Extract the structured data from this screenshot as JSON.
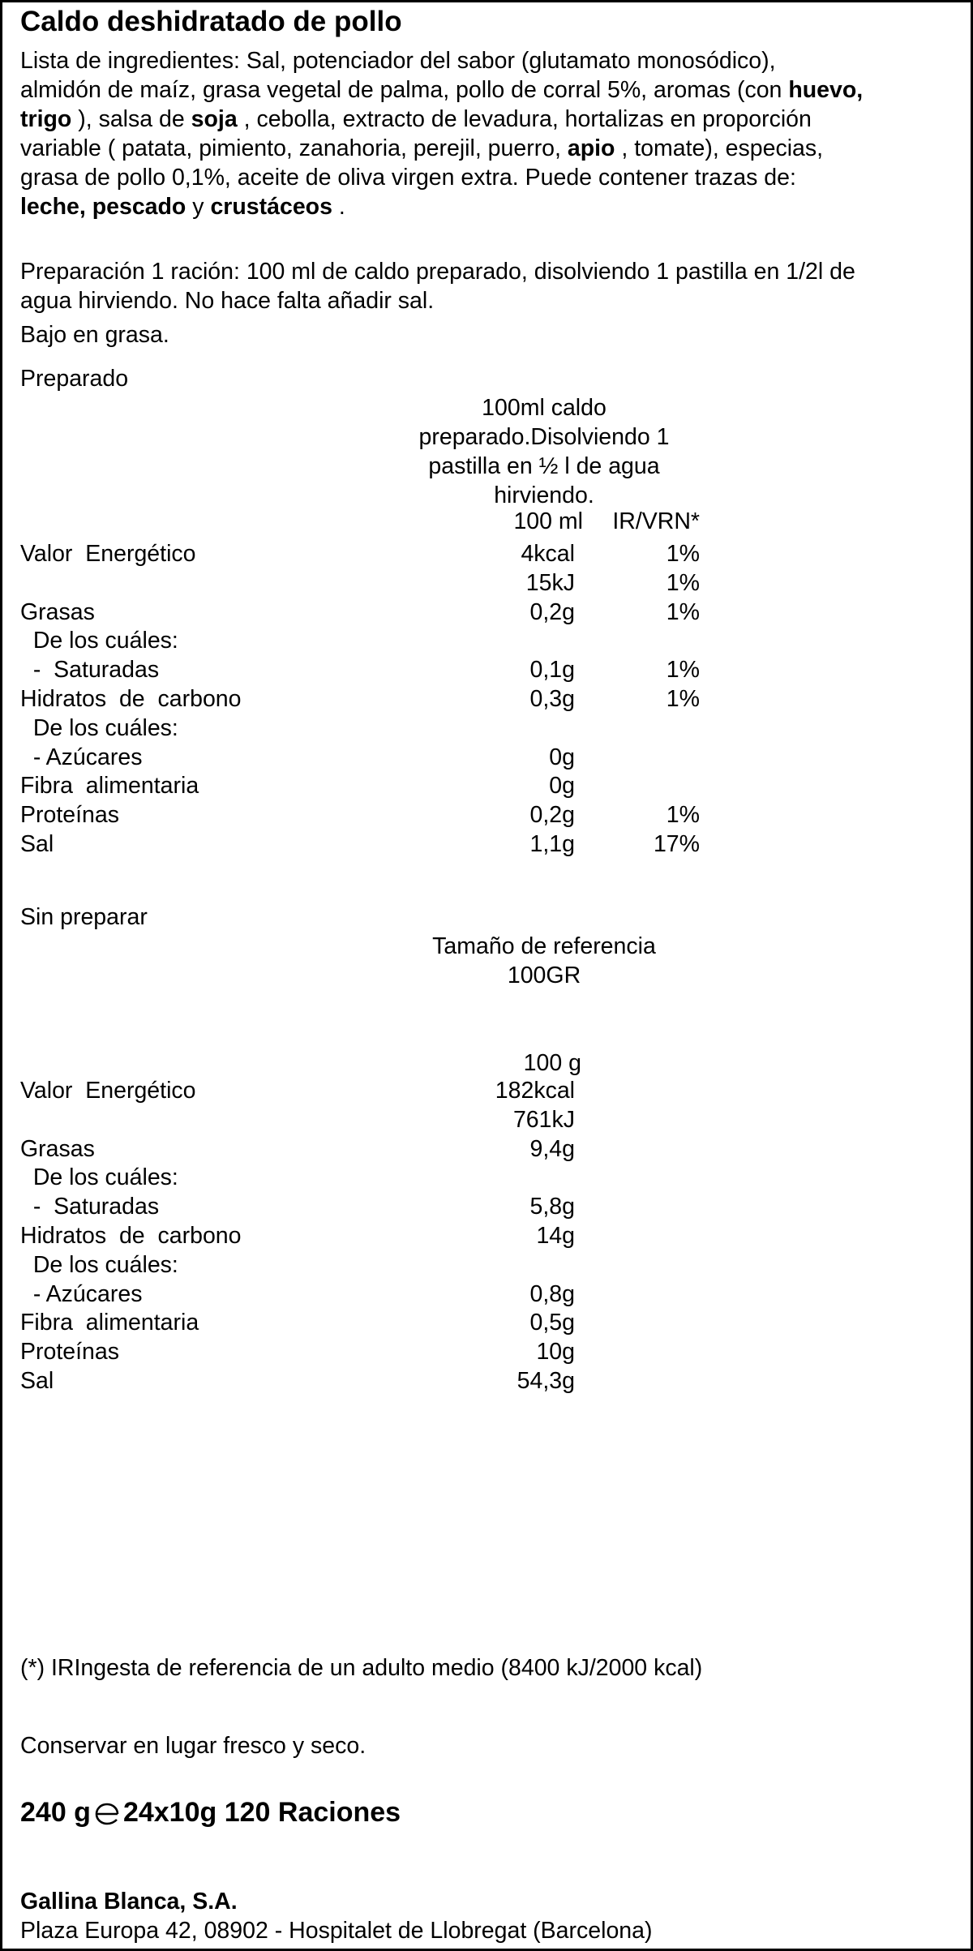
{
  "title": "Caldo deshidratado de pollo",
  "ingredients": [
    {
      "text": "Lista de ingredientes: Sal, potenciador del sabor (glutamato monosódico),"
    },
    {
      "text": "almidón de maíz, grasa vegetal de palma, pollo de corral 5%, aromas (con ",
      "bold1": "huevo,"
    },
    {
      "bold0": "trigo",
      "text": " ), salsa de ",
      "bold1": "soja",
      "text2": " , cebolla, extracto de levadura, hortalizas en proporción"
    },
    {
      "text": "variable ( patata, pimiento, zanahoria, perejil, puerro, ",
      "bold1": "apio",
      "text2": " , tomate), especias,"
    },
    {
      "text": "grasa de pollo 0,1%, aceite de oliva virgen extra. Puede contener trazas de:"
    },
    {
      "bold0": "leche, pescado",
      "text": " y ",
      "bold1": "crustáceos",
      "text2": " ."
    }
  ],
  "preparation": {
    "line1": "Preparación 1 ración: 100 ml de caldo preparado, disolviendo 1 pastilla en 1/2l de",
    "line2": "agua hirviendo. No hace falta añadir sal.",
    "low_fat": "Bajo en grasa."
  },
  "prepared": {
    "heading": "Preparado",
    "serving_lines": [
      "100ml caldo",
      "preparado.Disolviendo 1",
      "pastilla en ½ l de agua",
      "hirviendo."
    ],
    "col_amount": "100 ml",
    "col_ri": "IR/VRN*",
    "rows": [
      {
        "label": "Valor  Energético",
        "value": "4kcal",
        "ri": "1%"
      },
      {
        "label": "",
        "value": "15kJ",
        "ri": "1%"
      },
      {
        "label": "Grasas",
        "value": "0,2g",
        "ri": "1%"
      },
      {
        "label": "  De los cuáles:",
        "value": "",
        "ri": ""
      },
      {
        "label": "  -  Saturadas",
        "value": "0,1g",
        "ri": "1%"
      },
      {
        "label": "Hidratos  de  carbono",
        "value": "0,3g",
        "ri": "1%"
      },
      {
        "label": "  De los cuáles:",
        "value": "",
        "ri": ""
      },
      {
        "label": "  - Azúcares",
        "value": "0g",
        "ri": ""
      },
      {
        "label": "Fibra  alimentaria",
        "value": "0g",
        "ri": ""
      },
      {
        "label": "Proteínas",
        "value": "0,2g",
        "ri": "1%"
      },
      {
        "label": "Sal",
        "value": "1,1g",
        "ri": "17%"
      }
    ]
  },
  "unprepared": {
    "heading": "Sin preparar",
    "reference_lines": [
      "Tamaño de referencia",
      "100GR"
    ],
    "col_amount": "100 g",
    "rows": [
      {
        "label": "Valor  Energético",
        "value": "182kcal"
      },
      {
        "label": "",
        "value": "761kJ"
      },
      {
        "label": "Grasas",
        "value": "9,4g"
      },
      {
        "label": "  De los cuáles:",
        "value": ""
      },
      {
        "label": "  -  Saturadas",
        "value": "5,8g"
      },
      {
        "label": "Hidratos  de  carbono",
        "value": "14g"
      },
      {
        "label": "  De los cuáles:",
        "value": ""
      },
      {
        "label": "  - Azúcares",
        "value": "0,8g"
      },
      {
        "label": "Fibra  alimentaria",
        "value": "0,5g"
      },
      {
        "label": "Proteínas",
        "value": "10g"
      },
      {
        "label": "Sal",
        "value": "54,3g"
      }
    ]
  },
  "footnote": "(*) IRIngesta de referencia de un adulto medio (8400 kJ/2000 kcal)",
  "storage": "Conservar en lugar fresco y seco.",
  "net": {
    "weight": "240 g",
    "estimated_icon": "estimated-e-mark-icon",
    "pack": "24x10g  120 Raciones"
  },
  "company": {
    "name": "Gallina Blanca, S.A.",
    "address": "Plaza Europa 42, 08902 - Hospitalet de Llobregat (Barcelona)"
  }
}
